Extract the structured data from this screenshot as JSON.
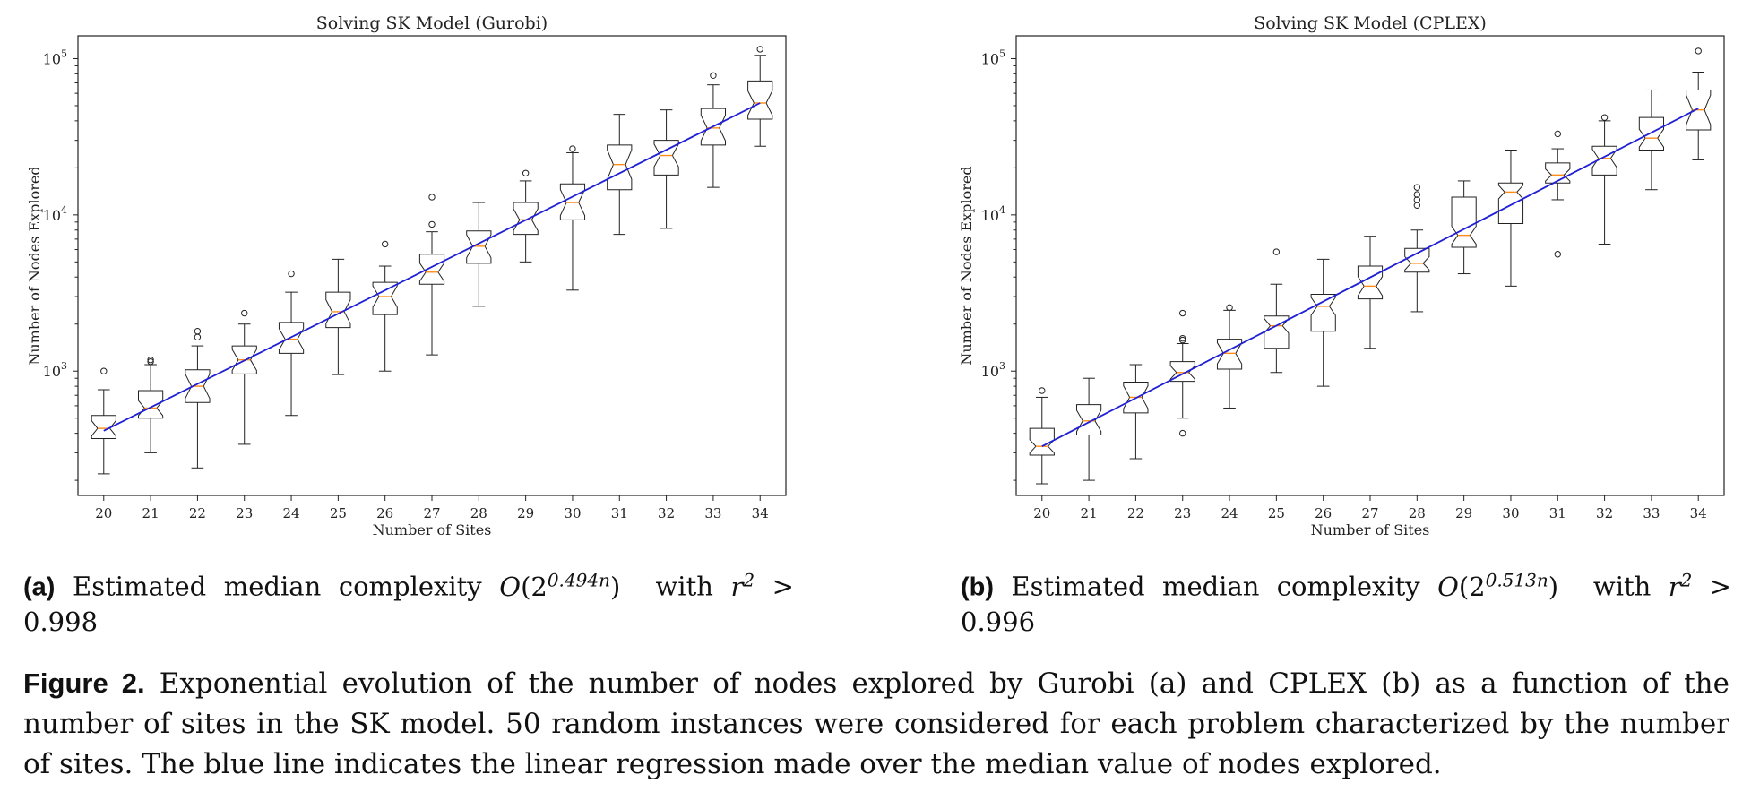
{
  "chart_data": [
    {
      "type": "box",
      "title": "Solving SK Model (Gurobi)",
      "xlabel": "Number of Sites",
      "ylabel": "Number of Nodes Explored",
      "yscale": "log",
      "ylim": [
        160,
        140000
      ],
      "yticks": [
        {
          "value": 1000,
          "base": "10",
          "exp": "3"
        },
        {
          "value": 10000,
          "base": "10",
          "exp": "4"
        },
        {
          "value": 100000,
          "base": "10",
          "exp": "5"
        }
      ],
      "categories": [
        "20",
        "21",
        "22",
        "23",
        "24",
        "25",
        "26",
        "27",
        "28",
        "29",
        "30",
        "31",
        "32",
        "33",
        "34"
      ],
      "notched": true,
      "grid": false,
      "box_color": "#222222",
      "median_color": "#ff8c1a",
      "regression_color": "#1f1fd6",
      "boxes": [
        {
          "x": 20,
          "whislo": 220,
          "q1": 370,
          "med": 430,
          "q3": 520,
          "whishi": 760,
          "fliers": [
            1000
          ]
        },
        {
          "x": 21,
          "whislo": 300,
          "q1": 500,
          "med": 580,
          "q3": 750,
          "whishi": 1100,
          "fliers": [
            1150,
            1180
          ]
        },
        {
          "x": 22,
          "whislo": 240,
          "q1": 630,
          "med": 800,
          "q3": 1020,
          "whishi": 1450,
          "fliers": [
            1650,
            1800
          ]
        },
        {
          "x": 23,
          "whislo": 340,
          "q1": 960,
          "med": 1180,
          "q3": 1450,
          "whishi": 2000,
          "fliers": [
            2350
          ]
        },
        {
          "x": 24,
          "whislo": 520,
          "q1": 1300,
          "med": 1600,
          "q3": 2050,
          "whishi": 3200,
          "fliers": [
            4200
          ]
        },
        {
          "x": 25,
          "whislo": 950,
          "q1": 1900,
          "med": 2400,
          "q3": 3200,
          "whishi": 5200,
          "fliers": []
        },
        {
          "x": 26,
          "whislo": 1000,
          "q1": 2300,
          "med": 3000,
          "q3": 3700,
          "whishi": 4700,
          "fliers": [
            6500
          ]
        },
        {
          "x": 27,
          "whislo": 1270,
          "q1": 3600,
          "med": 4300,
          "q3": 5600,
          "whishi": 7800,
          "fliers": [
            8700,
            13000
          ]
        },
        {
          "x": 28,
          "whislo": 2600,
          "q1": 4900,
          "med": 6300,
          "q3": 7900,
          "whishi": 12000,
          "fliers": []
        },
        {
          "x": 29,
          "whislo": 5000,
          "q1": 7500,
          "med": 9300,
          "q3": 12000,
          "whishi": 16500,
          "fliers": [
            18500
          ]
        },
        {
          "x": 30,
          "whislo": 3300,
          "q1": 9300,
          "med": 12000,
          "q3": 15800,
          "whishi": 25000,
          "fliers": [
            26500
          ]
        },
        {
          "x": 31,
          "whislo": 7500,
          "q1": 14500,
          "med": 21000,
          "q3": 28000,
          "whishi": 44000,
          "fliers": []
        },
        {
          "x": 32,
          "whislo": 8200,
          "q1": 18000,
          "med": 24000,
          "q3": 30000,
          "whishi": 47000,
          "fliers": []
        },
        {
          "x": 33,
          "whislo": 15000,
          "q1": 28000,
          "med": 36000,
          "q3": 48000,
          "whishi": 68000,
          "fliers": [
            78000
          ]
        },
        {
          "x": 34,
          "whislo": 27500,
          "q1": 41000,
          "med": 52000,
          "q3": 72000,
          "whishi": 105000,
          "fliers": [
            115000
          ]
        }
      ],
      "regression": {
        "x": [
          20,
          34
        ],
        "y": [
          415,
          52000
        ]
      }
    },
    {
      "type": "box",
      "title": "Solving SK Model (CPLEX)",
      "xlabel": "Number of Sites",
      "ylabel": "Number of Nodes Explored",
      "yscale": "log",
      "ylim": [
        160,
        140000
      ],
      "yticks": [
        {
          "value": 1000,
          "base": "10",
          "exp": "3"
        },
        {
          "value": 10000,
          "base": "10",
          "exp": "4"
        },
        {
          "value": 100000,
          "base": "10",
          "exp": "5"
        }
      ],
      "categories": [
        "20",
        "21",
        "22",
        "23",
        "24",
        "25",
        "26",
        "27",
        "28",
        "29",
        "30",
        "31",
        "32",
        "33",
        "34"
      ],
      "notched": true,
      "grid": false,
      "box_color": "#222222",
      "median_color": "#ff8c1a",
      "regression_color": "#1f1fd6",
      "boxes": [
        {
          "x": 20,
          "whislo": 190,
          "q1": 290,
          "med": 330,
          "q3": 430,
          "whishi": 680,
          "fliers": [
            750
          ]
        },
        {
          "x": 21,
          "whislo": 200,
          "q1": 390,
          "med": 480,
          "q3": 610,
          "whishi": 900,
          "fliers": []
        },
        {
          "x": 22,
          "whislo": 275,
          "q1": 540,
          "med": 680,
          "q3": 850,
          "whishi": 1100,
          "fliers": []
        },
        {
          "x": 23,
          "whislo": 500,
          "q1": 860,
          "med": 980,
          "q3": 1150,
          "whishi": 1500,
          "fliers": [
            400,
            1580,
            1620,
            2350
          ]
        },
        {
          "x": 24,
          "whislo": 580,
          "q1": 1030,
          "med": 1300,
          "q3": 1600,
          "whishi": 2450,
          "fliers": [
            2550
          ]
        },
        {
          "x": 25,
          "whislo": 980,
          "q1": 1400,
          "med": 1950,
          "q3": 2250,
          "whishi": 3600,
          "fliers": [
            5800
          ]
        },
        {
          "x": 26,
          "whislo": 800,
          "q1": 1800,
          "med": 2600,
          "q3": 3100,
          "whishi": 5200,
          "fliers": []
        },
        {
          "x": 27,
          "whislo": 1400,
          "q1": 2900,
          "med": 3500,
          "q3": 4700,
          "whishi": 7300,
          "fliers": []
        },
        {
          "x": 28,
          "whislo": 2400,
          "q1": 4300,
          "med": 4900,
          "q3": 6100,
          "whishi": 8000,
          "fliers": [
            11500,
            12500,
            13500,
            15000
          ]
        },
        {
          "x": 29,
          "whislo": 4200,
          "q1": 6200,
          "med": 7400,
          "q3": 13000,
          "whishi": 16500,
          "fliers": []
        },
        {
          "x": 30,
          "whislo": 3500,
          "q1": 8800,
          "med": 14000,
          "q3": 16000,
          "whishi": 26000,
          "fliers": []
        },
        {
          "x": 31,
          "whislo": 12500,
          "q1": 16000,
          "med": 18000,
          "q3": 21500,
          "whishi": 26500,
          "fliers": [
            5600,
            33000
          ]
        },
        {
          "x": 32,
          "whislo": 6500,
          "q1": 18000,
          "med": 23000,
          "q3": 27500,
          "whishi": 40000,
          "fliers": [
            42000
          ]
        },
        {
          "x": 33,
          "whislo": 14500,
          "q1": 26000,
          "med": 31000,
          "q3": 42000,
          "whishi": 63000,
          "fliers": []
        },
        {
          "x": 34,
          "whislo": 22500,
          "q1": 35000,
          "med": 47000,
          "q3": 63000,
          "whishi": 82000,
          "fliers": [
            112000
          ]
        }
      ],
      "regression": {
        "x": [
          20,
          34
        ],
        "y": [
          330,
          48000
        ]
      }
    }
  ],
  "captions": {
    "a": {
      "tag": "(a)",
      "text_before": " Estimated median complexity ",
      "math_O": "O",
      "math_base": "(2",
      "math_exp": "0.494n",
      "math_close": ")",
      "text_with": "  with ",
      "math_r": "r",
      "math_r_exp": "2",
      "text_tail": " > 0.998"
    },
    "b": {
      "tag": "(b)",
      "text_before": " Estimated median complexity ",
      "math_O": "O",
      "math_base": "(2",
      "math_exp": "0.513n",
      "math_close": ")",
      "text_with": "  with ",
      "math_r": "r",
      "math_r_exp": "2",
      "text_tail": " > 0.996"
    }
  },
  "figure_caption": {
    "label": "Figure 2.",
    "text": " Exponential evolution of the number of nodes explored by Gurobi (a) and CPLEX (b) as a function of the number of sites in the SK model. 50 random instances were considered for each problem characterized by the number of sites. The blue line indicates the linear regression made over the median value of nodes explored."
  }
}
